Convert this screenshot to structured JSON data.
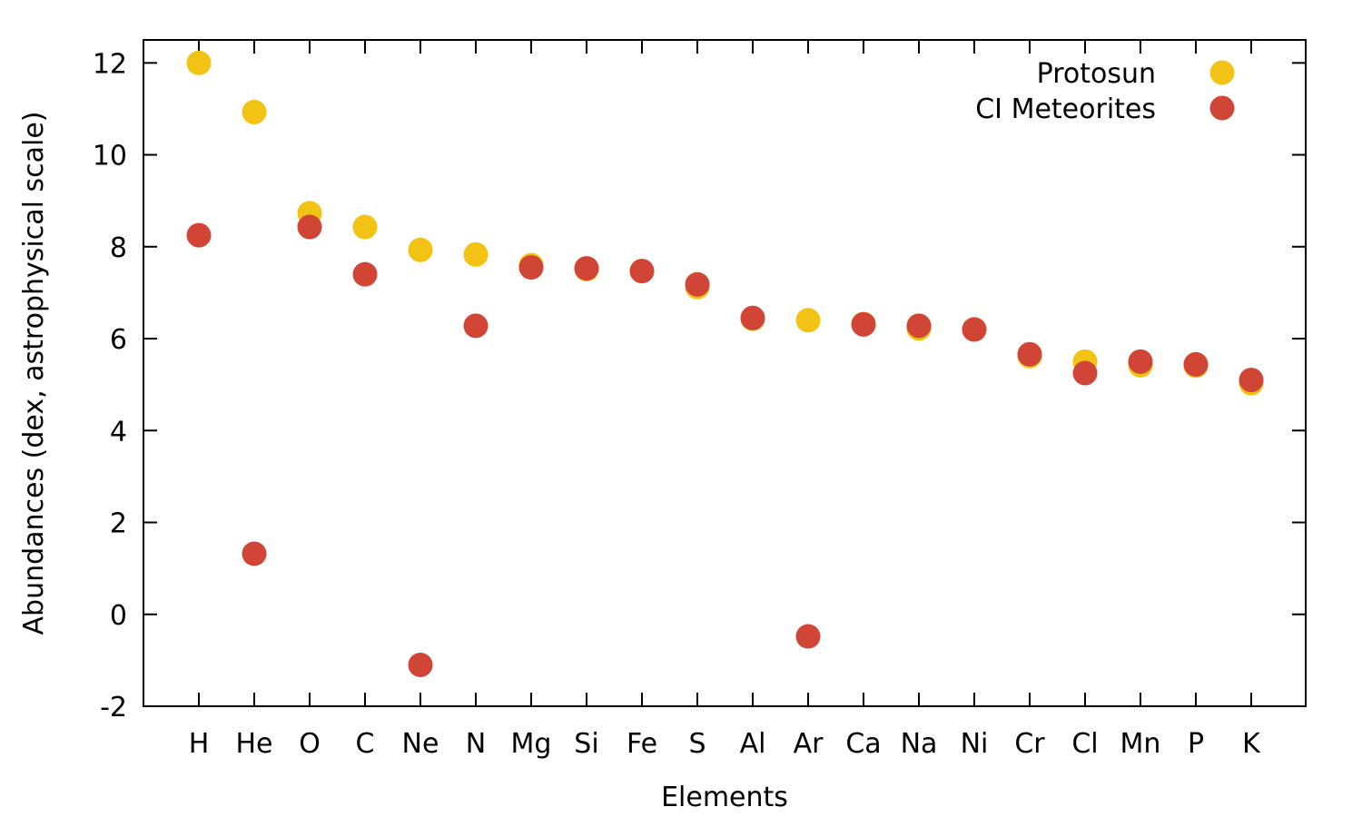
{
  "chart_data": {
    "type": "scatter",
    "title": "",
    "xlabel": "Elements",
    "ylabel": "Abundances (dex, astrophysical scale)",
    "categories": [
      "H",
      "He",
      "O",
      "C",
      "Ne",
      "N",
      "Mg",
      "Si",
      "Fe",
      "S",
      "Al",
      "Ar",
      "Ca",
      "Na",
      "Ni",
      "Cr",
      "Cl",
      "Mn",
      "P",
      "K"
    ],
    "ylim": [
      -2,
      12.5
    ],
    "yticks": [
      -2,
      0,
      2,
      4,
      6,
      8,
      10,
      12
    ],
    "ytick_labels": [
      "-2",
      "0",
      "2",
      "4",
      "6",
      "8",
      "10",
      "12"
    ],
    "legend_position": "top-right",
    "series": [
      {
        "name": "Protosun",
        "color": "#f2c314",
        "values": [
          12.0,
          10.93,
          8.73,
          8.43,
          7.93,
          7.83,
          7.6,
          7.51,
          7.47,
          7.12,
          6.43,
          6.4,
          6.32,
          6.22,
          6.2,
          5.62,
          5.5,
          5.42,
          5.41,
          5.03
        ]
      },
      {
        "name": "CI Meteorites",
        "color": "#d04535",
        "values": [
          8.25,
          1.32,
          8.43,
          7.4,
          -1.1,
          6.28,
          7.55,
          7.53,
          7.47,
          7.18,
          6.45,
          -0.48,
          6.31,
          6.28,
          6.2,
          5.66,
          5.25,
          5.5,
          5.44,
          5.1
        ]
      }
    ]
  }
}
